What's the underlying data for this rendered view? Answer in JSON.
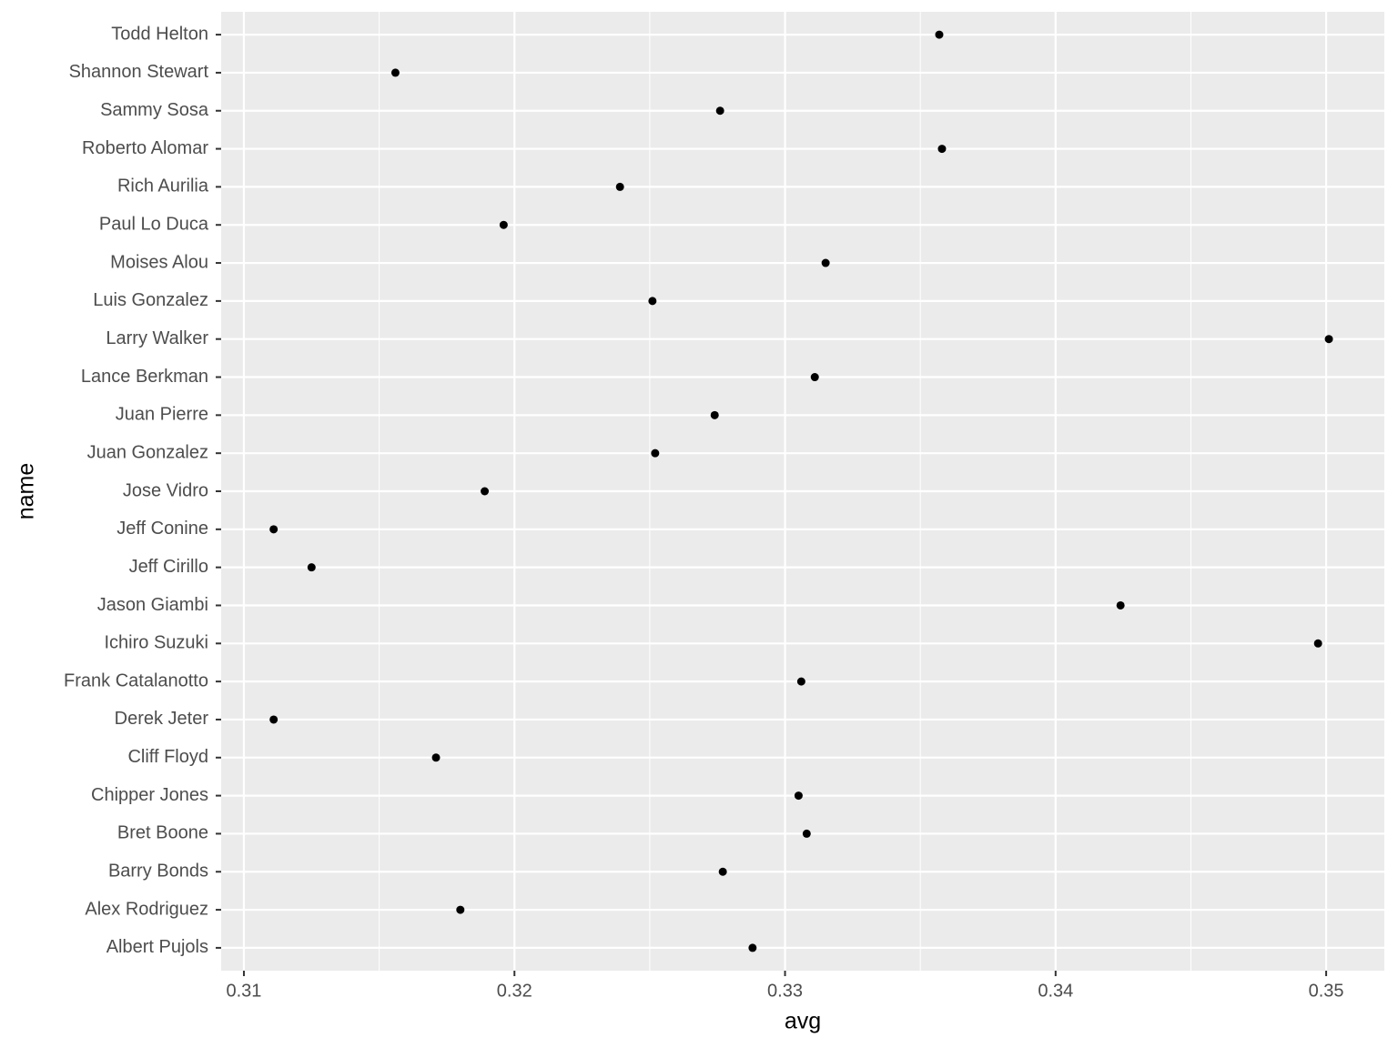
{
  "chart_data": {
    "type": "dot",
    "x_label": "avg",
    "y_label": "name",
    "categories": [
      "Albert Pujols",
      "Alex Rodriguez",
      "Barry Bonds",
      "Bret Boone",
      "Chipper Jones",
      "Cliff Floyd",
      "Derek Jeter",
      "Frank Catalanotto",
      "Ichiro Suzuki",
      "Jason Giambi",
      "Jeff Cirillo",
      "Jeff Conine",
      "Jose Vidro",
      "Juan Gonzalez",
      "Juan Pierre",
      "Lance Berkman",
      "Larry Walker",
      "Luis Gonzalez",
      "Moises Alou",
      "Paul Lo Duca",
      "Rich Aurilia",
      "Roberto Alomar",
      "Sammy Sosa",
      "Shannon Stewart",
      "Todd Helton"
    ],
    "values": [
      0.3288,
      0.318,
      0.3277,
      0.3308,
      0.3305,
      0.3171,
      0.3111,
      0.3306,
      0.3497,
      0.3424,
      0.3125,
      0.3111,
      0.3189,
      0.3252,
      0.3274,
      0.3311,
      0.3501,
      0.3251,
      0.3315,
      0.3196,
      0.3239,
      0.3358,
      0.3276,
      0.3156,
      0.3357
    ],
    "color": "#000000",
    "xlim": [
      0.30916,
      0.35215
    ],
    "xticks": [
      0.31,
      0.32,
      0.33,
      0.34,
      0.35
    ],
    "grid": true
  }
}
